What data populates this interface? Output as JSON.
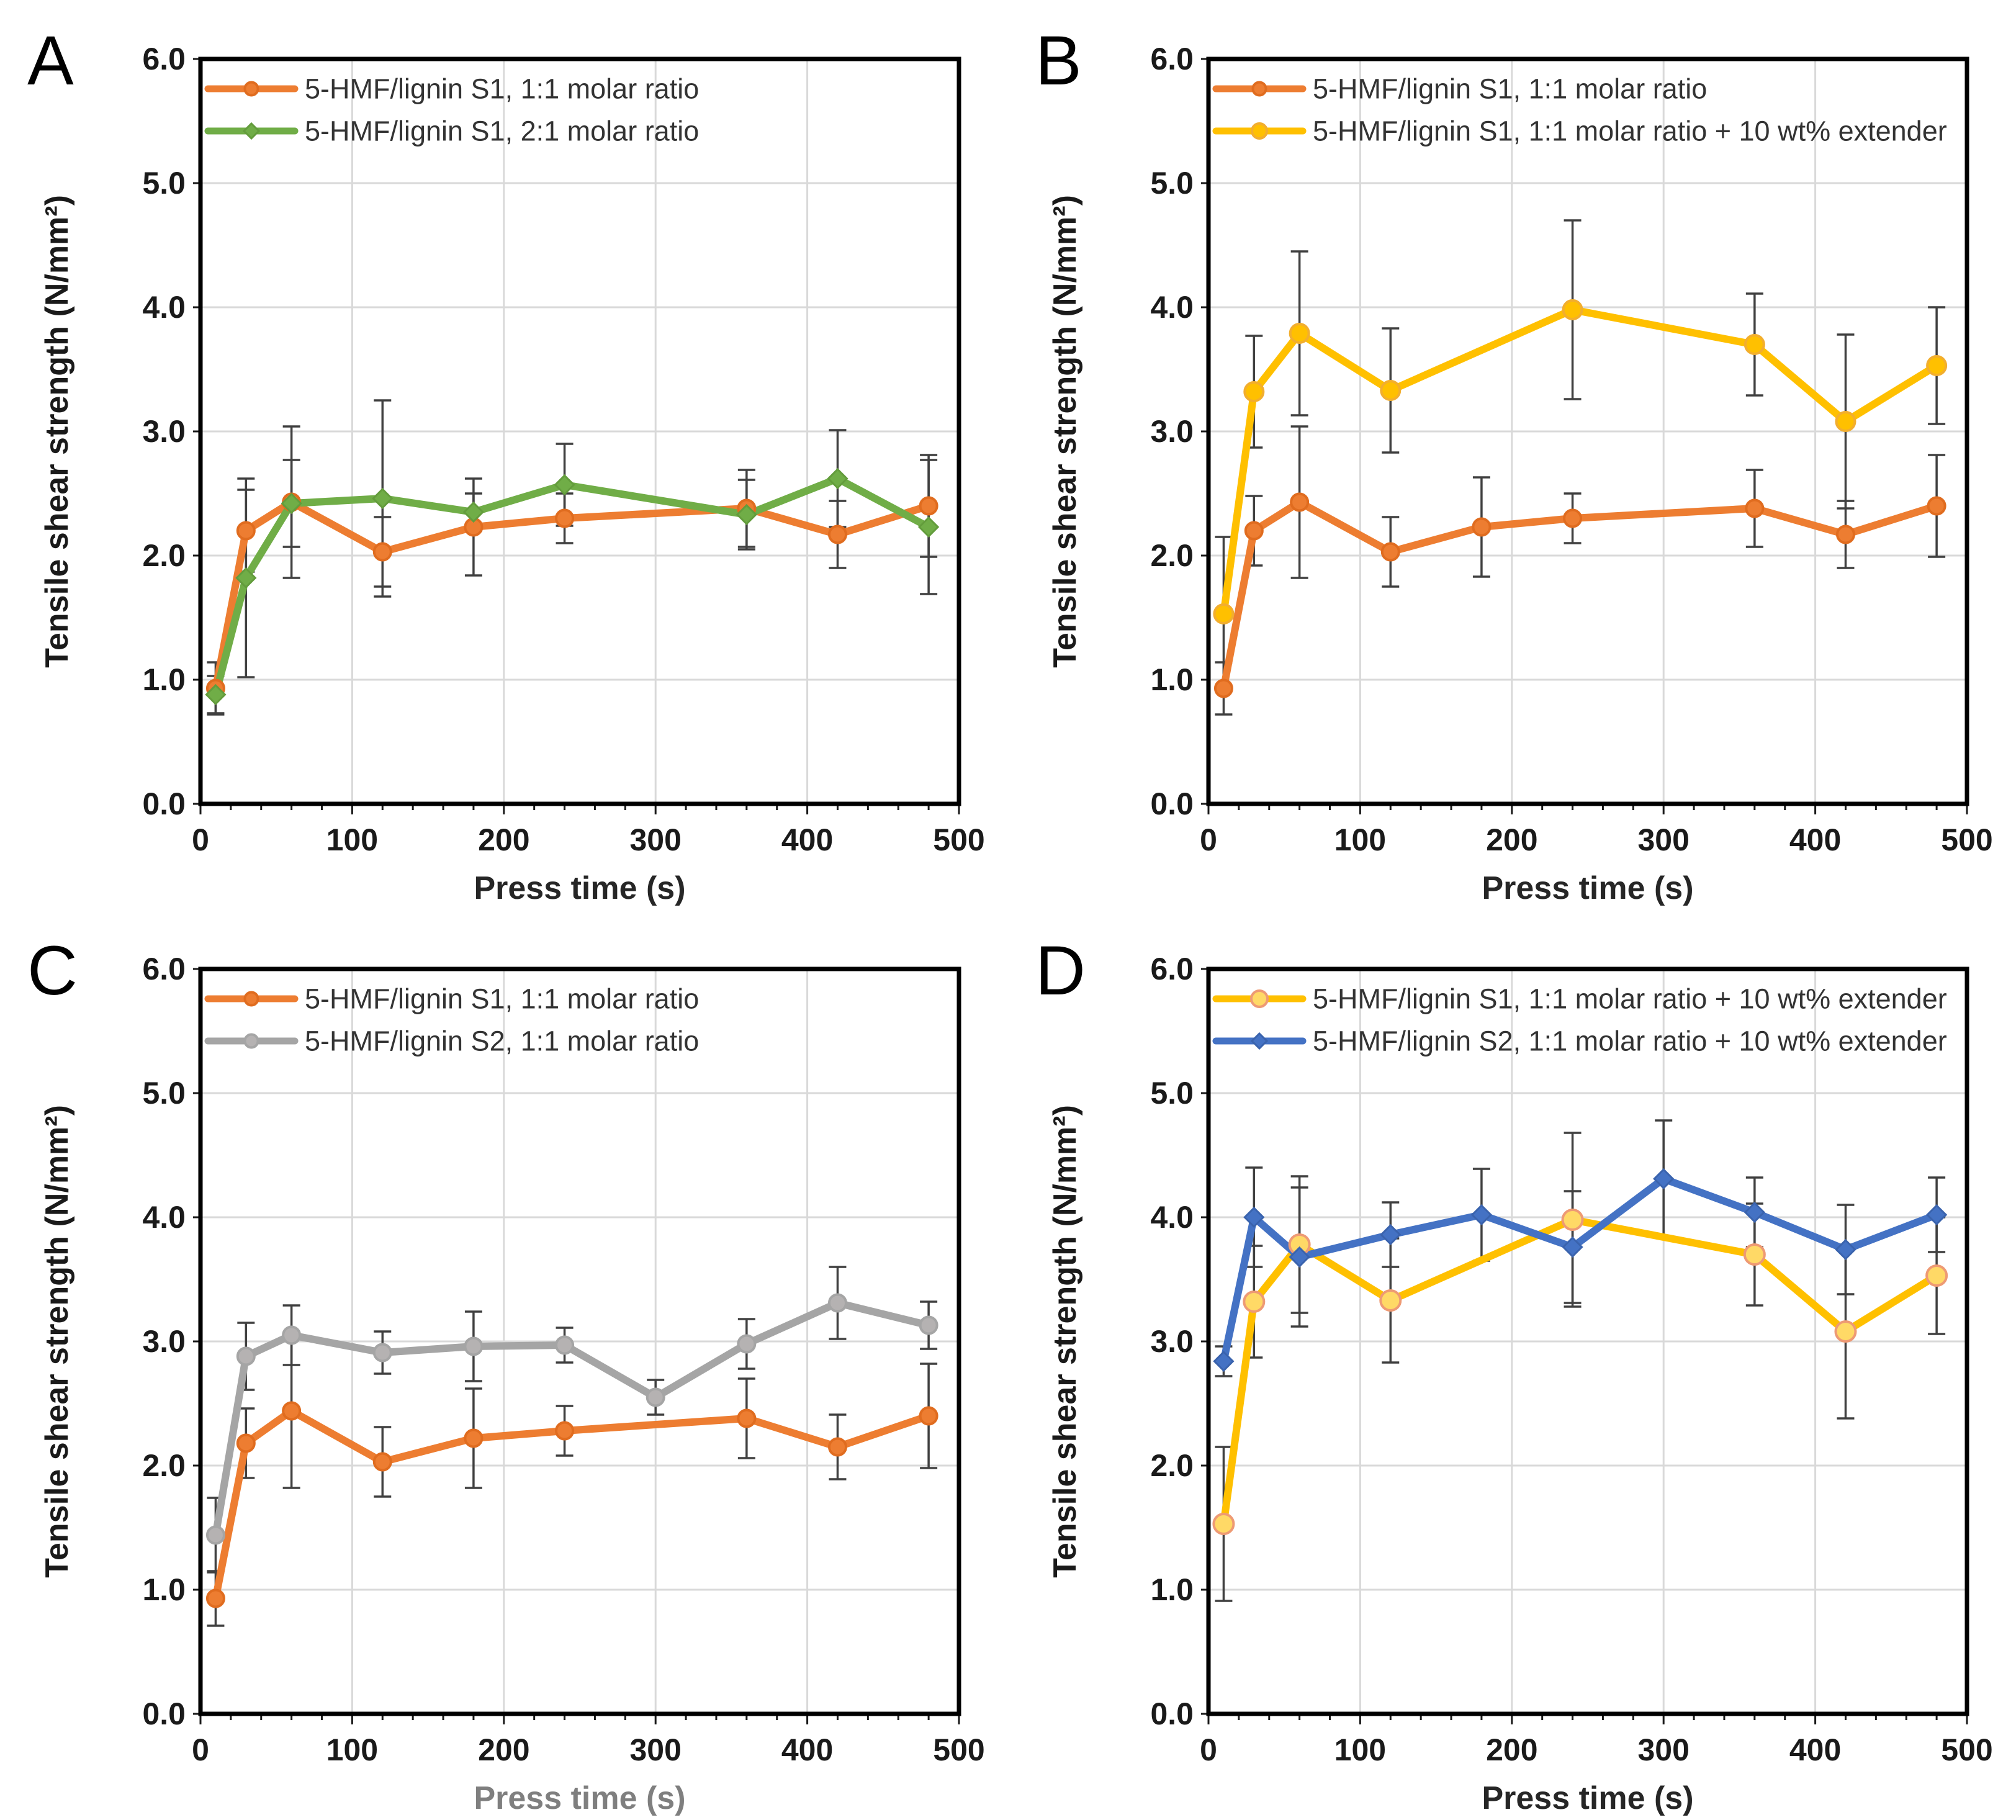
{
  "figure": {
    "background": "#ffffff",
    "panel_labels": [
      "A",
      "B",
      "C",
      "D"
    ],
    "colors": {
      "orange": "#ED7D31",
      "green": "#70AD47",
      "yellow": "#FFC000",
      "gray": "#A5A5A5",
      "blue": "#4472C4",
      "error_bar": "#404040",
      "gridline": "#D9D9D9",
      "axis": "#000000"
    }
  },
  "chart_data": [
    {
      "panel": "A",
      "type": "line",
      "title": "",
      "xlabel": "Press time (s)",
      "ylabel": "Tensile shear strength (N/mm²)",
      "xlabel_color": "#262626",
      "xlim": [
        0,
        500
      ],
      "ylim": [
        0.0,
        6.0
      ],
      "xticks": [
        0,
        100,
        200,
        300,
        400,
        500
      ],
      "x_minor_tick_step": 20,
      "yticks": [
        "0.0",
        "1.0",
        "2.0",
        "3.0",
        "4.0",
        "5.0",
        "6.0"
      ],
      "grid": true,
      "legend_position": "top-left",
      "series": [
        {
          "name": "5-HMF/lignin S1, 1:1 molar ratio",
          "color": "#ED7D31",
          "marker": "circle",
          "marker_fill": "#ED7D31",
          "marker_stroke": "#E06C1F",
          "marker_size": 13.5,
          "x": [
            10,
            30,
            60,
            120,
            180,
            240,
            360,
            420,
            480
          ],
          "y": [
            0.93,
            2.2,
            2.43,
            2.03,
            2.23,
            2.3,
            2.38,
            2.17,
            2.4
          ],
          "yerr": [
            0.21,
            0.33,
            0.61,
            0.28,
            0.39,
            0.2,
            0.31,
            0.27,
            0.41
          ]
        },
        {
          "name": "5-HMF/lignin S1, 2:1 molar ratio",
          "color": "#70AD47",
          "marker": "diamond",
          "marker_fill": "#70AD47",
          "marker_stroke": "#639C3C",
          "marker_size": 15,
          "x": [
            10,
            30,
            60,
            120,
            180,
            240,
            360,
            420,
            480
          ],
          "y": [
            0.88,
            1.82,
            2.42,
            2.46,
            2.35,
            2.57,
            2.33,
            2.62,
            2.23
          ],
          "yerr": [
            0.15,
            0.8,
            0.35,
            0.79,
            0.15,
            0.33,
            0.28,
            0.39,
            0.54
          ]
        }
      ]
    },
    {
      "panel": "B",
      "type": "line",
      "title": "",
      "xlabel": "Press time (s)",
      "ylabel": "Tensile shear strength (N/mm²)",
      "xlabel_color": "#262626",
      "xlim": [
        0,
        500
      ],
      "ylim": [
        0.0,
        6.0
      ],
      "xticks": [
        0,
        100,
        200,
        300,
        400,
        500
      ],
      "x_minor_tick_step": 20,
      "yticks": [
        "0.0",
        "1.0",
        "2.0",
        "3.0",
        "4.0",
        "5.0",
        "6.0"
      ],
      "grid": true,
      "legend_position": "top-left",
      "series": [
        {
          "name": "5-HMF/lignin S1, 1:1 molar ratio",
          "color": "#ED7D31",
          "marker": "circle",
          "marker_fill": "#ED7D31",
          "marker_stroke": "#E06C1F",
          "marker_size": 13.5,
          "x": [
            10,
            30,
            60,
            120,
            180,
            240,
            360,
            420,
            480
          ],
          "y": [
            0.93,
            2.2,
            2.43,
            2.03,
            2.23,
            2.3,
            2.38,
            2.17,
            2.4
          ],
          "yerr": [
            0.21,
            0.28,
            0.61,
            0.28,
            0.4,
            0.2,
            0.31,
            0.27,
            0.41
          ]
        },
        {
          "name": "5-HMF/lignin S1, 1:1 molar ratio + 10 wt% extender",
          "color": "#FFC000",
          "marker": "circle",
          "marker_fill": "#FFC000",
          "marker_stroke": "#F2AE2E",
          "marker_size": 15,
          "x": [
            10,
            30,
            60,
            120,
            240,
            360,
            420,
            480
          ],
          "y": [
            1.53,
            3.32,
            3.79,
            3.33,
            3.98,
            3.7,
            3.08,
            3.53
          ],
          "yerr": [
            0.62,
            0.45,
            0.66,
            0.5,
            0.72,
            0.41,
            0.7,
            0.47
          ]
        }
      ]
    },
    {
      "panel": "C",
      "type": "line",
      "title": "",
      "xlabel": "Press time (s)",
      "ylabel": "Tensile shear strength (N/mm²)",
      "xlabel_color": "#7F7F7F",
      "xlim": [
        0,
        500
      ],
      "ylim": [
        0.0,
        6.0
      ],
      "xticks": [
        0,
        100,
        200,
        300,
        400,
        500
      ],
      "x_minor_tick_step": 20,
      "yticks": [
        "0.0",
        "1.0",
        "2.0",
        "3.0",
        "4.0",
        "5.0",
        "6.0"
      ],
      "grid": true,
      "legend_position": "top-left",
      "series": [
        {
          "name": "5-HMF/lignin S1, 1:1 molar ratio",
          "color": "#ED7D31",
          "marker": "circle",
          "marker_fill": "#ED7D31",
          "marker_stroke": "#E06C1F",
          "marker_size": 13.5,
          "x": [
            10,
            30,
            60,
            120,
            180,
            240,
            360,
            420,
            480
          ],
          "y": [
            0.93,
            2.18,
            2.44,
            2.03,
            2.22,
            2.28,
            2.38,
            2.15,
            2.4
          ],
          "yerr": [
            0.22,
            0.28,
            0.62,
            0.28,
            0.4,
            0.2,
            0.32,
            0.26,
            0.42
          ]
        },
        {
          "name": "5-HMF/lignin S2, 1:1 molar ratio",
          "color": "#A5A5A5",
          "marker": "circle",
          "marker_fill": "#B5B2B2",
          "marker_stroke": "#A5A5A5",
          "marker_size": 13.5,
          "x": [
            10,
            30,
            60,
            120,
            180,
            240,
            300,
            360,
            420,
            480
          ],
          "y": [
            1.44,
            2.88,
            3.05,
            2.91,
            2.96,
            2.97,
            2.55,
            2.98,
            3.31,
            3.13
          ],
          "yerr": [
            0.3,
            0.27,
            0.24,
            0.17,
            0.28,
            0.14,
            0.14,
            0.2,
            0.29,
            0.19
          ]
        }
      ]
    },
    {
      "panel": "D",
      "type": "line",
      "title": "",
      "xlabel": "Press time (s)",
      "ylabel": "Tensile shear strength (N/mm²)",
      "xlabel_color": "#262626",
      "xlim": [
        0,
        500
      ],
      "ylim": [
        0.0,
        6.0
      ],
      "xticks": [
        0,
        100,
        200,
        300,
        400,
        500
      ],
      "x_minor_tick_step": 20,
      "yticks": [
        "0.0",
        "1.0",
        "2.0",
        "3.0",
        "4.0",
        "5.0",
        "6.0"
      ],
      "grid": true,
      "legend_position": "top-left",
      "series": [
        {
          "name": "5-HMF/lignin S1, 1:1 molar ratio + 10 wt% extender",
          "color": "#FFC000",
          "marker": "circle",
          "marker_fill": "#FFD966",
          "marker_stroke": "#EE9A74",
          "marker_size": 16,
          "x": [
            10,
            30,
            60,
            120,
            240,
            360,
            420,
            480
          ],
          "y": [
            1.53,
            3.32,
            3.78,
            3.33,
            3.98,
            3.7,
            3.08,
            3.53
          ],
          "yerr": [
            0.62,
            0.45,
            0.55,
            0.5,
            0.7,
            0.41,
            0.7,
            0.47
          ]
        },
        {
          "name": "5-HMF/lignin S2, 1:1 molar ratio + 10 wt% extender",
          "color": "#4472C4",
          "marker": "diamond",
          "marker_fill": "#4472C4",
          "marker_stroke": "#3A63AD",
          "marker_size": 15,
          "x": [
            10,
            30,
            60,
            120,
            180,
            240,
            300,
            360,
            420,
            480
          ],
          "y": [
            2.84,
            4.0,
            3.68,
            3.86,
            4.02,
            3.76,
            4.31,
            4.04,
            3.74,
            4.02
          ],
          "yerr": [
            0.12,
            0.4,
            0.56,
            0.26,
            0.37,
            0.45,
            0.47,
            0.28,
            0.36,
            0.3
          ]
        }
      ]
    }
  ]
}
